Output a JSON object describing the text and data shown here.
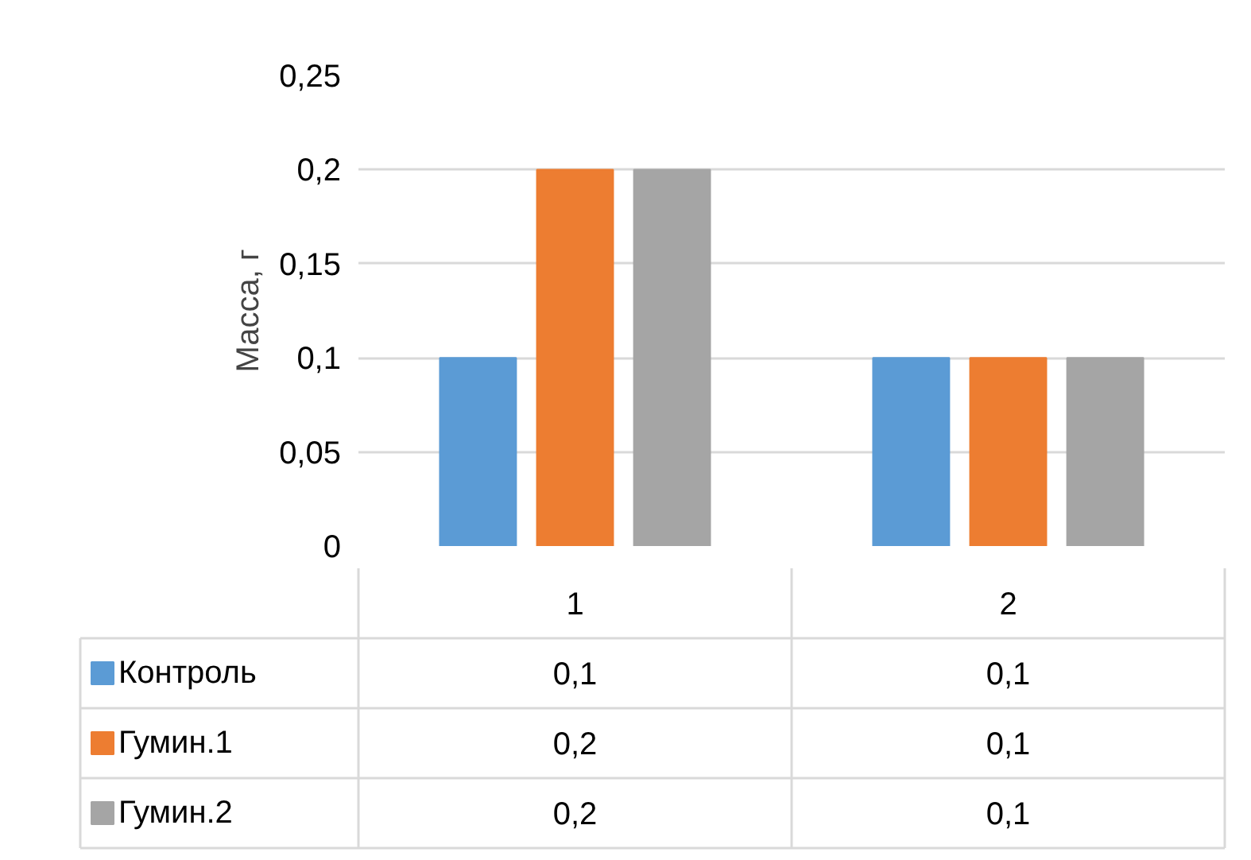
{
  "chart_data": {
    "type": "bar",
    "ylabel": "Масса, г",
    "categories": [
      "1",
      "2"
    ],
    "series": [
      {
        "name": "Контроль",
        "color": "#5b9bd5",
        "values": [
          0.1,
          0.1
        ],
        "value_labels": [
          "0,1",
          "0,1"
        ]
      },
      {
        "name": "Гумин.1",
        "color": "#ed7d31",
        "values": [
          0.2,
          0.1
        ],
        "value_labels": [
          "0,2",
          "0,1"
        ]
      },
      {
        "name": "Гумин.2",
        "color": "#a5a5a5",
        "values": [
          0.2,
          0.1
        ],
        "value_labels": [
          "0,2",
          "0,1"
        ]
      }
    ],
    "ylim": [
      0,
      0.25
    ],
    "yticks": [
      0,
      {
        "value": 0.05,
        "label": "0,05"
      },
      {
        "value": 0.1,
        "label": "0,1"
      },
      {
        "value": 0.15,
        "label": "0,15"
      },
      {
        "value": 0.2,
        "label": "0,2"
      },
      {
        "value": 0.25,
        "label": "0,25"
      }
    ],
    "grid": "y",
    "legend": "bottom"
  }
}
